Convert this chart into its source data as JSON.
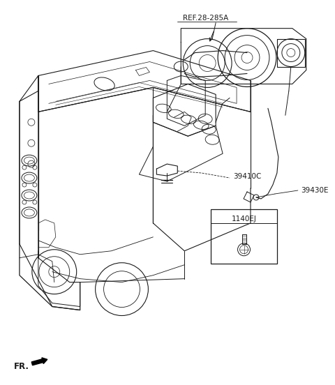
{
  "bg_color": "#ffffff",
  "line_color": "#1a1a1a",
  "fig_width": 4.8,
  "fig_height": 5.52,
  "dpi": 100,
  "labels": {
    "ref": "REF.28-285A",
    "part1": "39430E",
    "part2": "39410C",
    "part3": "1140EJ",
    "fr": "FR."
  },
  "font_size": 7.5,
  "font_size_ref": 7.5
}
